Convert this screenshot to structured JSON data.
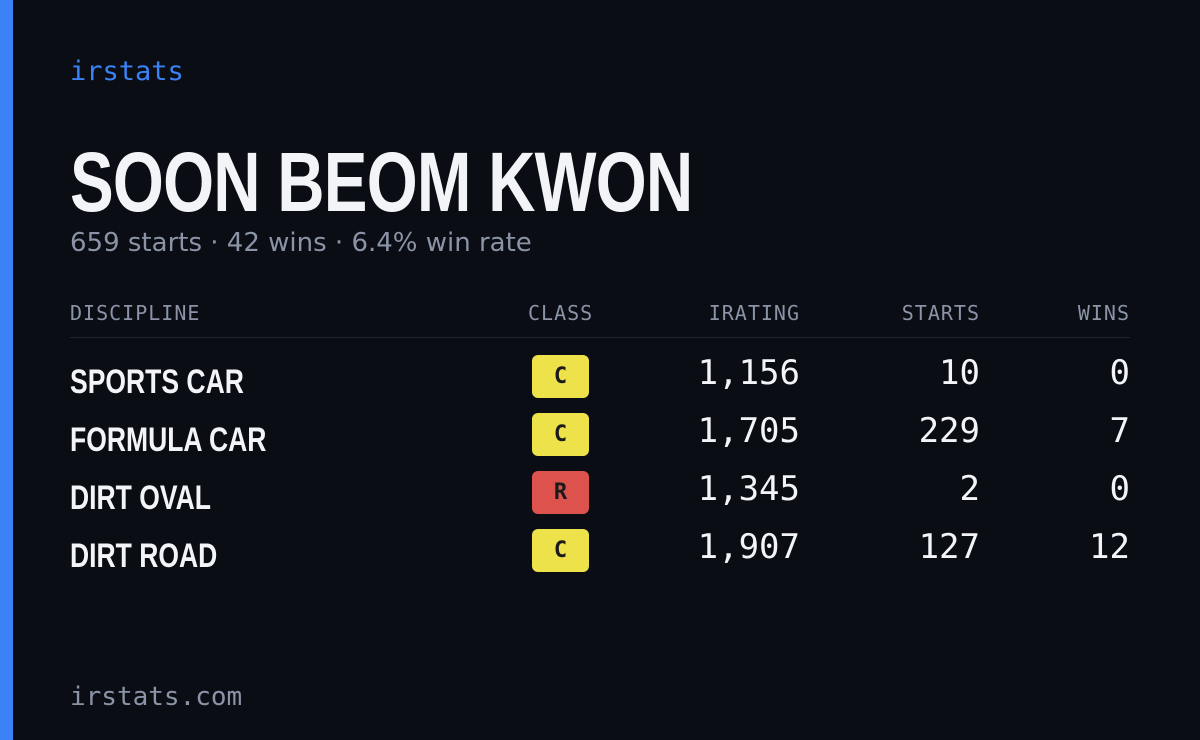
{
  "header": {
    "brand": "irstats",
    "title": "SOON BEOM KWON",
    "subtitle": "659 starts · 42 wins · 6.4% win rate"
  },
  "table": {
    "columns": [
      "DISCIPLINE",
      "CLASS",
      "IRATING",
      "STARTS",
      "WINS"
    ],
    "rows": [
      {
        "discipline": "SPORTS CAR",
        "class": "C",
        "class_color": "#ede24a",
        "irating": "1,156",
        "starts": "10",
        "wins": "0"
      },
      {
        "discipline": "FORMULA CAR",
        "class": "C",
        "class_color": "#ede24a",
        "irating": "1,705",
        "starts": "229",
        "wins": "7"
      },
      {
        "discipline": "DIRT OVAL",
        "class": "R",
        "class_color": "#dd524c",
        "irating": "1,345",
        "starts": "2",
        "wins": "0"
      },
      {
        "discipline": "DIRT ROAD",
        "class": "C",
        "class_color": "#ede24a",
        "irating": "1,907",
        "starts": "127",
        "wins": "12"
      }
    ]
  },
  "footer": {
    "text": "irstats.com"
  }
}
